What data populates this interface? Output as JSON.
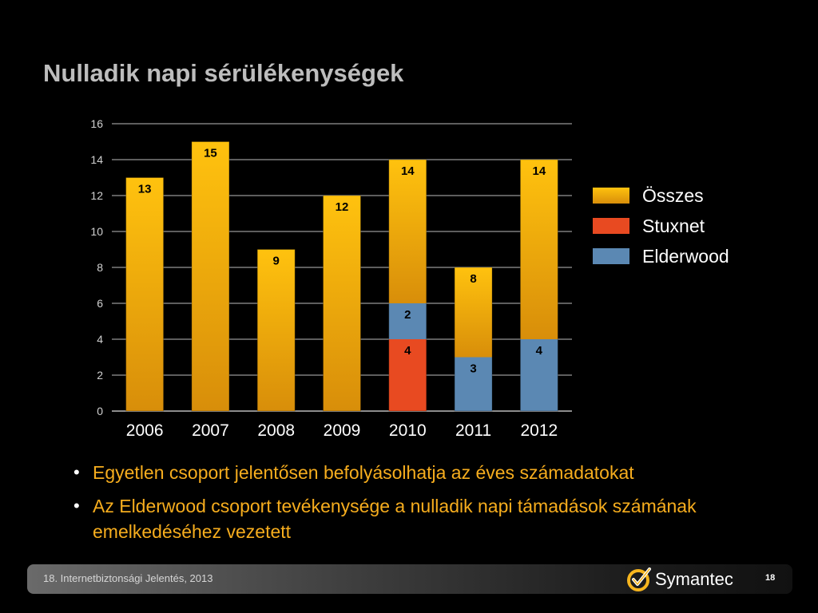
{
  "slide": {
    "title": "Nulladik napi sérülékenységek",
    "bullets": [
      "Egyetlen csoport jelentősen befolyásolhatja az éves számadatokat",
      "Az Elderwood csoport tevékenysége a nulladik napi támadások számának emelkedéséhez vezetett"
    ]
  },
  "footer": {
    "text": "18. Internetbiztonsági Jelentés, 2013",
    "logo_wordmark": "Symantec",
    "page_number": "18"
  },
  "colors": {
    "osszes_top": "#ffc20e",
    "osszes_bottom": "#d88e0a",
    "stuxnet": "#e84a21",
    "elderwood": "#5b88b3",
    "bullet_text": "#f6ad1e"
  },
  "chart_data": {
    "type": "bar",
    "categories": [
      "2006",
      "2007",
      "2008",
      "2009",
      "2010",
      "2011",
      "2012"
    ],
    "series": [
      {
        "name": "Összes",
        "values": [
          13,
          15,
          9,
          12,
          14,
          8,
          14
        ]
      },
      {
        "name": "Stuxnet",
        "values": [
          0,
          0,
          0,
          0,
          4,
          0,
          0
        ]
      },
      {
        "name": "Elderwood",
        "values": [
          0,
          0,
          0,
          0,
          2,
          3,
          4
        ]
      }
    ],
    "ylim": [
      0,
      16
    ],
    "yticks": [
      0,
      2,
      4,
      6,
      8,
      10,
      12,
      14,
      16
    ],
    "grid": true,
    "legend": "right",
    "bar_labels": [
      {
        "category": "2006",
        "series": "Összes",
        "label": "13"
      },
      {
        "category": "2007",
        "series": "Összes",
        "label": "15"
      },
      {
        "category": "2008",
        "series": "Összes",
        "label": "9"
      },
      {
        "category": "2009",
        "series": "Összes",
        "label": "12"
      },
      {
        "category": "2010",
        "series": "Összes",
        "label": "14"
      },
      {
        "category": "2010",
        "series": "Stuxnet",
        "label": "4"
      },
      {
        "category": "2010",
        "series": "Elderwood",
        "label": "2"
      },
      {
        "category": "2011",
        "series": "Összes",
        "label": "8"
      },
      {
        "category": "2011",
        "series": "Elderwood",
        "label": "3"
      },
      {
        "category": "2012",
        "series": "Összes",
        "label": "14"
      },
      {
        "category": "2012",
        "series": "Elderwood",
        "label": "4"
      }
    ]
  }
}
